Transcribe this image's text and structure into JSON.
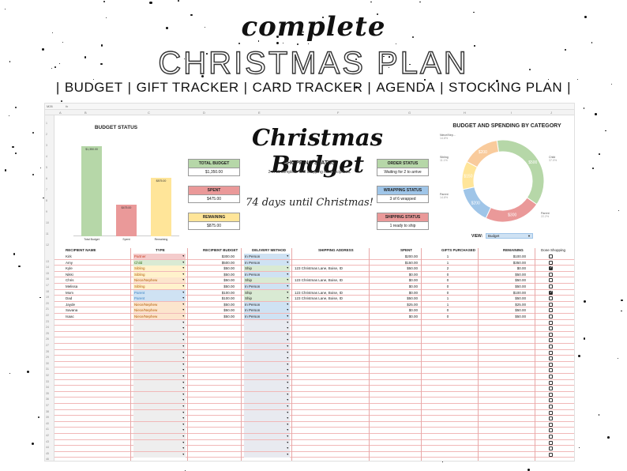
{
  "banner": {
    "script_title": "complete",
    "main_title": "CHRISTMAS PLAN",
    "nav": [
      "BUDGET",
      "GIFT TRACKER",
      "CARD TRACKER",
      "AGENDA",
      "STOCKING PLAN"
    ]
  },
  "sheet": {
    "cell_ref": "M26",
    "fx": "fx",
    "columns": [
      "A",
      "B",
      "C",
      "D",
      "E",
      "F",
      "G",
      "H",
      "I",
      "J"
    ]
  },
  "budget_status": {
    "title": "BUDGET STATUS",
    "chart_data": {
      "type": "bar",
      "categories": [
        "Total Budget",
        "Spent",
        "Remaining"
      ],
      "values": [
        1350,
        475,
        875
      ],
      "value_labels": [
        "$1,350.00",
        "$475.00",
        "$875.00"
      ],
      "colors": [
        "#b6d7a8",
        "#ea9999",
        "#ffe599"
      ],
      "ylim": [
        0,
        1400
      ]
    }
  },
  "title": "Christmas Budget",
  "stats": {
    "total_budget": {
      "label": "TOTAL BUDGET",
      "value": "$1,350.00",
      "color": "#b6d7a8"
    },
    "spent": {
      "label": "SPENT",
      "value": "$475.00",
      "color": "#ea9999"
    },
    "remaining": {
      "label": "REMAINING",
      "value": "$875.00",
      "color": "#ffe599"
    },
    "order_status": {
      "label": "ORDER STATUS",
      "value": "Waiting for 2 to arrive",
      "color": "#b6d7a8"
    },
    "wrapping_status": {
      "label": "WRAPPING STATUS",
      "value": "3 of 6  wrapped",
      "color": "#9fc5e8"
    },
    "shipping_status": {
      "label": "SHIPPING STATUS",
      "value": "1 ready to ship",
      "color": "#ea9999"
    }
  },
  "shopping": {
    "title": "SHOPPING STATUS",
    "subtitle": "2 of 11 complete. Still shopping for 9 recipients.",
    "countdown": "74 days until Christmas!"
  },
  "category_chart": {
    "title": "BUDGET AND SPENDING BY CATEGORY",
    "view_label": "VIEW:",
    "view_value": "Budget",
    "chart_data": {
      "type": "pie",
      "slices": [
        {
          "name": "Child",
          "pct": "37.0%",
          "value_label": "$500",
          "value": 500,
          "color": "#b6d7a8"
        },
        {
          "name": "Parent",
          "pct": "22.2%",
          "value_label": "$300",
          "value": 300,
          "color": "#ea9999"
        },
        {
          "name": "Parent",
          "pct": "14.8%",
          "value_label": "$200",
          "value": 200,
          "color": "#9fc5e8"
        },
        {
          "name": "Sibling",
          "pct": "11.1%",
          "value_label": "$150",
          "value": 150,
          "color": "#ffe599"
        },
        {
          "name": "Niece/Nep...",
          "pct": "14.8%",
          "value_label": "$200",
          "value": 200,
          "color": "#f9cb9c"
        }
      ]
    }
  },
  "table": {
    "headers": [
      "RECIPIENT NAME",
      "TYPE",
      "RECIPIENT BUDGET",
      "DELIVERY METHOD",
      "SHIPPING ADDRESS",
      "SPENT",
      "GIFTS PURCHASED",
      "REMAINING",
      "Done Shopping"
    ],
    "rows": [
      {
        "name": "Kirk",
        "type": "Partner",
        "budget": "$300.00",
        "delivery": "In Person",
        "address": "",
        "spent": "$200.00",
        "gifts": "1",
        "remaining": "$100.00",
        "done": false
      },
      {
        "name": "Amy",
        "type": "Child",
        "budget": "$500.00",
        "delivery": "In Person",
        "address": "",
        "spent": "$150.00",
        "gifts": "1",
        "remaining": "$350.00",
        "done": false
      },
      {
        "name": "Kyle",
        "type": "Sibling",
        "budget": "$50.00",
        "delivery": "Ship",
        "address": "123 Christmas Lane, Boise, ID",
        "spent": "$50.00",
        "gifts": "2",
        "remaining": "$0.00",
        "done": true
      },
      {
        "name": "Nikki",
        "type": "Sibling",
        "budget": "$50.00",
        "delivery": "In Person",
        "address": "",
        "spent": "$0.00",
        "gifts": "0",
        "remaining": "$50.00",
        "done": false
      },
      {
        "name": "Chris",
        "type": "Niece/Nephew",
        "budget": "$50.00",
        "delivery": "Ship",
        "address": "123 Christmas Lane, Boise, ID",
        "spent": "$0.00",
        "gifts": "0",
        "remaining": "$50.00",
        "done": false
      },
      {
        "name": "Melissa",
        "type": "Sibling",
        "budget": "$50.00",
        "delivery": "In Person",
        "address": "",
        "spent": "$0.00",
        "gifts": "0",
        "remaining": "$50.00",
        "done": false
      },
      {
        "name": "Mom",
        "type": "Parent",
        "budget": "$100.00",
        "delivery": "Ship",
        "address": "123 Christmas Lane, Boise, ID",
        "spent": "$0.00",
        "gifts": "0",
        "remaining": "$100.00",
        "done": true
      },
      {
        "name": "Dad",
        "type": "Parent",
        "budget": "$100.00",
        "delivery": "Ship",
        "address": "123 Christmas Lane, Boise, ID",
        "spent": "$50.00",
        "gifts": "1",
        "remaining": "$50.00",
        "done": false
      },
      {
        "name": "Jayde",
        "type": "Niece/Nephew",
        "budget": "$50.00",
        "delivery": "In Person",
        "address": "",
        "spent": "$25.00",
        "gifts": "1",
        "remaining": "$25.00",
        "done": false
      },
      {
        "name": "Savana",
        "type": "Niece/Nephew",
        "budget": "$50.00",
        "delivery": "In Person",
        "address": "",
        "spent": "$0.00",
        "gifts": "0",
        "remaining": "$50.00",
        "done": false
      },
      {
        "name": "Isaac",
        "type": "Niece/Nephew",
        "budget": "$50.00",
        "delivery": "In Person",
        "address": "",
        "spent": "$0.00",
        "gifts": "0",
        "remaining": "$50.00",
        "done": false
      }
    ],
    "empty_rows": 23,
    "type_colors": {
      "Partner": "#f4cccc",
      "Child": "#d9ead3",
      "Sibling": "#fff2cc",
      "Niece/Nephew": "#fce5cd",
      "Parent": "#cfe2f3"
    },
    "delivery_colors": {
      "In Person": "#cfe2f3",
      "Ship": "#d9ead3"
    }
  }
}
